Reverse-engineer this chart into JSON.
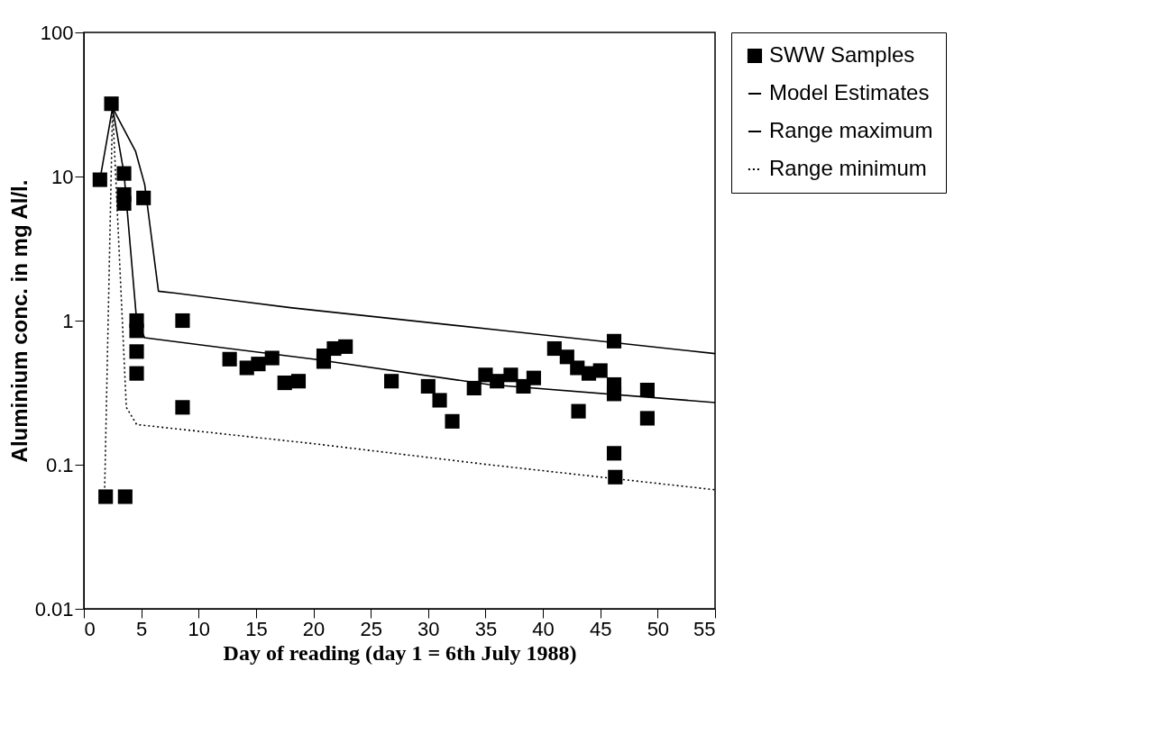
{
  "chart_data": {
    "type": "scatter",
    "xlabel": "Day of reading (day 1 = 6th July 1988)",
    "ylabel": "Aluminium conc. in mg Al/l.",
    "log": "y",
    "grid": false,
    "legend": "top right",
    "xlim": [
      0,
      55
    ],
    "xticks": [
      0,
      5,
      10,
      15,
      20,
      25,
      30,
      35,
      40,
      45,
      50,
      55
    ],
    "ylim": [
      0.01,
      100
    ],
    "yticks": [
      0.01,
      0.1,
      1,
      10,
      100
    ],
    "series": [
      {
        "name": "SWW Samples",
        "color": "#000000",
        "marker": "square",
        "x": [
          1.4,
          1.9,
          2.4,
          3.5,
          3.5,
          3.5,
          3.6,
          4.6,
          4.6,
          4.6,
          4.6,
          5.2,
          8.6,
          8.6,
          12.7,
          14.2,
          15.2,
          16.4,
          17.5,
          18.7,
          20.9,
          20.9,
          21.8,
          22.8,
          26.8,
          30.0,
          31.0,
          32.1,
          34.0,
          35.0,
          36.0,
          37.2,
          38.3,
          39.2,
          41.0,
          42.1,
          43.0,
          43.1,
          44.0,
          45.0,
          46.2,
          46.2,
          46.2,
          46.2,
          46.3,
          49.1,
          49.1
        ],
        "values": [
          9.5,
          0.06,
          32,
          10.5,
          7.5,
          6.5,
          0.06,
          1.0,
          0.85,
          0.61,
          0.43,
          7.1,
          1.0,
          0.25,
          0.54,
          0.47,
          0.5,
          0.55,
          0.37,
          0.38,
          0.57,
          0.52,
          0.64,
          0.66,
          0.38,
          0.35,
          0.28,
          0.2,
          0.34,
          0.42,
          0.38,
          0.42,
          0.35,
          0.4,
          0.64,
          0.56,
          0.47,
          0.235,
          0.43,
          0.45,
          0.72,
          0.36,
          0.31,
          0.12,
          0.082,
          0.33,
          0.21
        ]
      },
      {
        "name": "Model Estimates",
        "type": "line",
        "color": "#000000",
        "line_style": "solid",
        "marker": "none",
        "x": [
          1.4,
          2.5,
          3.5,
          4.6,
          5.3,
          20,
          35.3,
          55
        ],
        "values": [
          9.5,
          30,
          10.5,
          1.0,
          0.76,
          0.54,
          0.36,
          0.27
        ]
      },
      {
        "name": "Range maximum",
        "type": "line",
        "color": "#000000",
        "line_style": "solid",
        "marker": "none",
        "x": [
          2.5,
          4.5,
          5.3,
          6.5,
          8,
          18,
          36.7,
          55
        ],
        "values": [
          30,
          15,
          8.8,
          1.6,
          1.55,
          1.23,
          0.85,
          0.59
        ]
      },
      {
        "name": "Range minimum",
        "type": "line",
        "color": "#000000",
        "line_style": "dotted",
        "marker": "none",
        "x": [
          1.8,
          2.5,
          3.7,
          4.6,
          20,
          35.3,
          55
        ],
        "values": [
          0.06,
          30,
          0.25,
          0.19,
          0.14,
          0.1,
          0.067
        ]
      }
    ]
  }
}
